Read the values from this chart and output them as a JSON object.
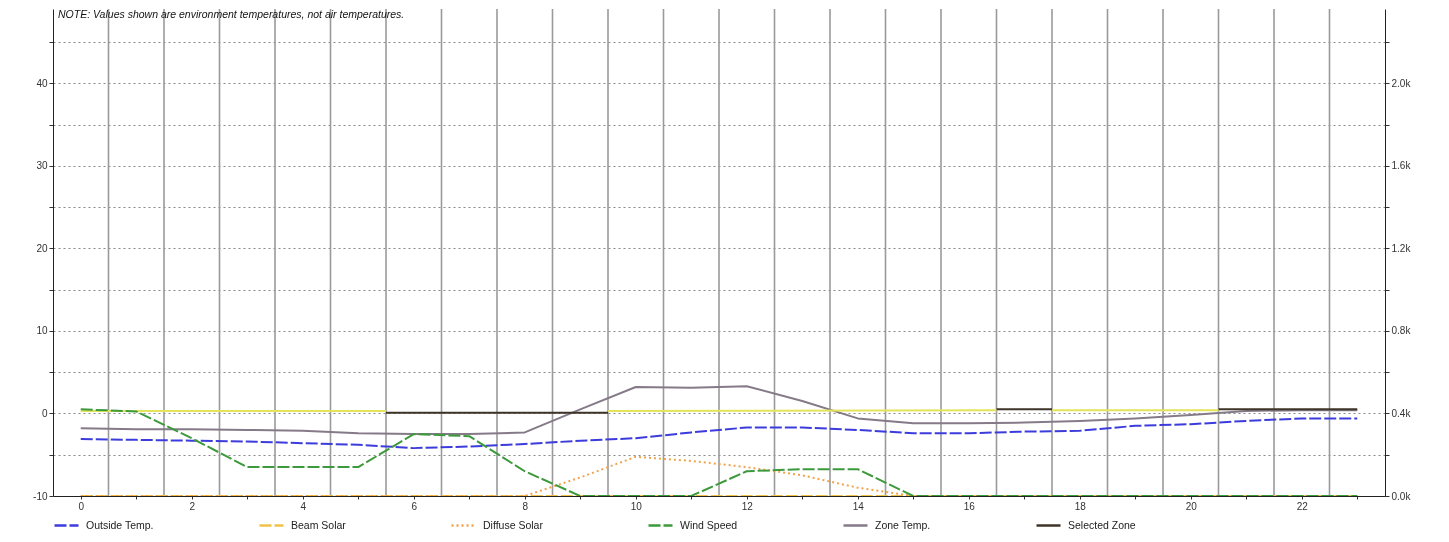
{
  "chart_data": {
    "type": "line",
    "annotations": [
      "NOTE: Values shown are environment temperatures, not air temperatures."
    ],
    "x": [
      0,
      1,
      2,
      3,
      4,
      5,
      6,
      7,
      8,
      9,
      10,
      11,
      12,
      13,
      14,
      15,
      16,
      17,
      18,
      19,
      20,
      21,
      22,
      23
    ],
    "xlim": [
      -0.5,
      23.5
    ],
    "xticks": [
      0,
      {
        "value": 1,
        "label": null
      },
      2,
      {
        "value": 3,
        "label": null
      },
      4,
      {
        "value": 5,
        "label": null
      },
      6,
      {
        "value": 7,
        "label": null
      },
      8,
      {
        "value": 9,
        "label": null
      },
      10,
      {
        "value": 11,
        "label": null
      },
      12,
      {
        "value": 13,
        "label": null
      },
      14,
      {
        "value": 15,
        "label": null
      },
      16,
      {
        "value": 17,
        "label": null
      },
      18,
      {
        "value": 19,
        "label": null
      },
      20,
      {
        "value": 21,
        "label": null
      },
      22,
      {
        "value": 23,
        "label": null
      }
    ],
    "ylim": [
      -10,
      49
    ],
    "yticks": [
      -10,
      {
        "value": -5,
        "label": null
      },
      0,
      {
        "value": 5,
        "label": null
      },
      10,
      {
        "value": 15,
        "label": null
      },
      20,
      {
        "value": 25,
        "label": null
      },
      30,
      {
        "value": 35,
        "label": null
      },
      40,
      {
        "value": 45,
        "label": null
      }
    ],
    "y2lim": [
      0,
      2360
    ],
    "y2ticks": [
      {
        "value": 0,
        "label": "0.0k"
      },
      {
        "value": 200,
        "label": null
      },
      {
        "value": 400,
        "label": "0.4k"
      },
      {
        "value": 600,
        "label": null
      },
      {
        "value": 800,
        "label": "0.8k"
      },
      {
        "value": 1000,
        "label": null
      },
      {
        "value": 1200,
        "label": "1.2k"
      },
      {
        "value": 1400,
        "label": null
      },
      {
        "value": 1600,
        "label": "1.6k"
      },
      {
        "value": 1800,
        "label": null
      },
      {
        "value": 2000,
        "label": "2.0k"
      },
      {
        "value": 2200,
        "label": null
      }
    ],
    "grid": "y",
    "legend": "bottom",
    "ref_lines": [
      {
        "axis": "x",
        "value": 0.5,
        "color": "#9a9a9a"
      },
      {
        "axis": "x",
        "value": 1.5,
        "color": "#9a9a9a"
      },
      {
        "axis": "x",
        "value": 2.5,
        "color": "#9a9a9a"
      },
      {
        "axis": "x",
        "value": 3.5,
        "color": "#9a9a9a"
      },
      {
        "axis": "x",
        "value": 4.5,
        "color": "#9a9a9a"
      },
      {
        "axis": "x",
        "value": 5.5,
        "color": "#9a9a9a"
      },
      {
        "axis": "x",
        "value": 6.5,
        "color": "#9a9a9a"
      },
      {
        "axis": "x",
        "value": 7.5,
        "color": "#9a9a9a"
      },
      {
        "axis": "x",
        "value": 8.5,
        "color": "#9a9a9a"
      },
      {
        "axis": "x",
        "value": 9.5,
        "color": "#9a9a9a"
      },
      {
        "axis": "x",
        "value": 10.5,
        "color": "#9a9a9a"
      },
      {
        "axis": "x",
        "value": 11.5,
        "color": "#9a9a9a"
      },
      {
        "axis": "x",
        "value": 12.5,
        "color": "#9a9a9a"
      },
      {
        "axis": "x",
        "value": 13.5,
        "color": "#9a9a9a"
      },
      {
        "axis": "x",
        "value": 14.5,
        "color": "#9a9a9a"
      },
      {
        "axis": "x",
        "value": 15.5,
        "color": "#9a9a9a"
      },
      {
        "axis": "x",
        "value": 16.5,
        "color": "#9a9a9a"
      },
      {
        "axis": "x",
        "value": 17.5,
        "color": "#9a9a9a"
      },
      {
        "axis": "x",
        "value": 18.5,
        "color": "#9a9a9a"
      },
      {
        "axis": "x",
        "value": 19.5,
        "color": "#9a9a9a"
      },
      {
        "axis": "x",
        "value": 20.5,
        "color": "#9a9a9a"
      },
      {
        "axis": "x",
        "value": 21.5,
        "color": "#9a9a9a"
      },
      {
        "axis": "x",
        "value": 22.5,
        "color": "#9a9a9a"
      }
    ],
    "series": [
      {
        "name": "Outside Temp.",
        "color": "#3c3cdc",
        "line_style": "dashed",
        "values": [
          -3.1,
          -3.2,
          -3.3,
          -3.4,
          -3.6,
          -3.8,
          -4.2,
          -4.0,
          -3.7,
          -3.3,
          -3.0,
          -2.3,
          -1.7,
          -1.7,
          -2.0,
          -2.4,
          -2.4,
          -2.2,
          -2.1,
          -1.5,
          -1.3,
          -0.9,
          -0.6,
          -0.6
        ]
      },
      {
        "name": "Beam Solar",
        "color": "#f0c24a",
        "line_style": "dashed",
        "axis": "y2",
        "values": [
          0,
          0,
          0,
          0,
          0,
          0,
          0,
          0,
          0,
          0,
          0,
          0,
          0,
          0,
          0,
          0,
          0,
          0,
          0,
          0,
          0,
          0,
          0,
          0
        ]
      },
      {
        "name": "Diffuse Solar",
        "color": "#f2a24a",
        "line_style": "dotted",
        "axis": "y2",
        "values": [
          0,
          0,
          0,
          0,
          0,
          0,
          0,
          0,
          0,
          90,
          190,
          170,
          140,
          100,
          40,
          0,
          0,
          0,
          0,
          0,
          0,
          0,
          0,
          0
        ]
      },
      {
        "name": "Wind Speed",
        "color": "#3c9a3c",
        "line_style": "dashed",
        "axis": "y2",
        "values": [
          420,
          410,
          280,
          140,
          140,
          140,
          300,
          290,
          120,
          0,
          0,
          0,
          120,
          130,
          130,
          0,
          0,
          0,
          0,
          0,
          0,
          0,
          0,
          0
        ]
      },
      {
        "name": "Zone Temp.",
        "color": "#857a88",
        "line_style": "solid",
        "values": [
          -1.8,
          -1.9,
          -1.9,
          -2.0,
          -2.1,
          -2.4,
          -2.5,
          -2.5,
          -2.3,
          0.5,
          3.2,
          3.1,
          3.3,
          1.5,
          -0.6,
          -1.2,
          -1.2,
          -1.1,
          -0.9,
          -0.6,
          -0.2,
          0.3,
          0.4,
          0.4
        ]
      },
      {
        "name": "Selected Zone",
        "color": "#3e3428",
        "line_style": "solid",
        "x": [
          5.5,
          9.5,
          13,
          16.5,
          17.5,
          19,
          20.5,
          23
        ],
        "values": [
          0.1,
          0.1,
          null,
          0.5,
          0.5,
          null,
          0.5,
          0.5
        ]
      },
      {
        "color": "#e4e45a",
        "line_style": "solid",
        "x": [
          0,
          5.5,
          7.5,
          9.5,
          16.5,
          17,
          17.5,
          20.5
        ],
        "values": [
          0.3,
          0.3,
          null,
          0.3,
          0.4,
          null,
          0.4,
          0.4
        ]
      }
    ]
  }
}
